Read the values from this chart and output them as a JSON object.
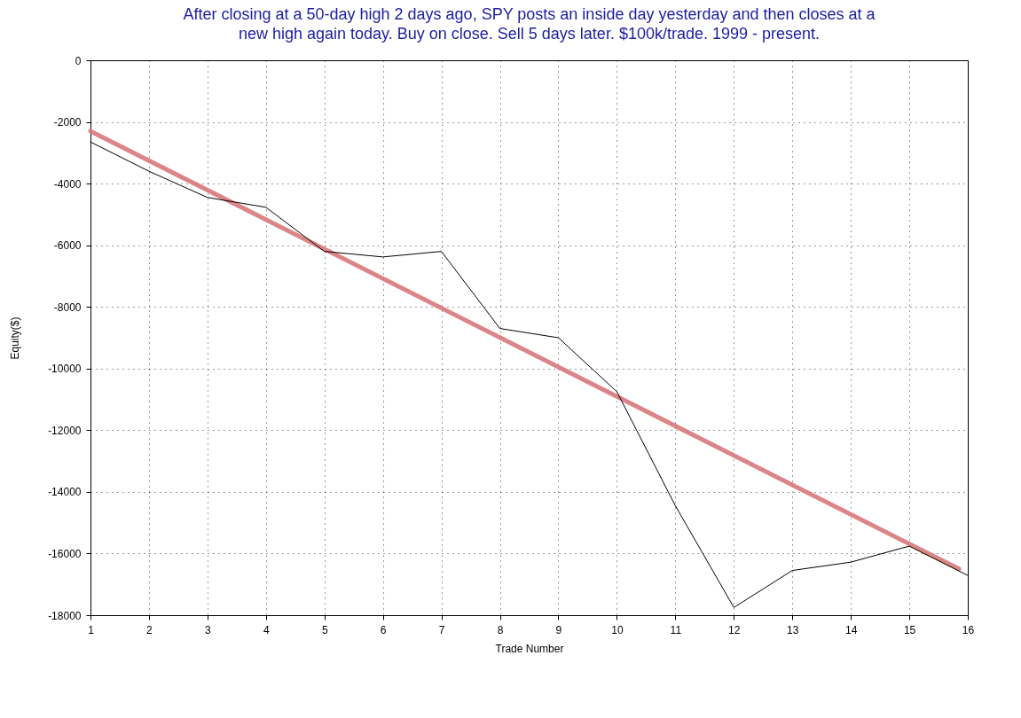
{
  "chart_data": {
    "type": "line",
    "title": [
      "After closing at a 50-day high 2 days ago, SPY posts an inside day yesterday and then closes at a",
      "new high again today. Buy on close. Sell 5 days later. $100k/trade. 1999 - present."
    ],
    "xlabel": "Trade Number",
    "ylabel": "Equity($)",
    "x": [
      1,
      2,
      3,
      4,
      5,
      6,
      7,
      8,
      9,
      10,
      11,
      12,
      13,
      14,
      15,
      16
    ],
    "series": [
      {
        "color": "#000000",
        "values": [
          -2650,
          -3600,
          -4450,
          -4770,
          -6200,
          -6380,
          -6200,
          -8700,
          -9000,
          -10750,
          -14450,
          -17750,
          -16550,
          -16280,
          -15760,
          -16710
        ]
      },
      {
        "type": "line",
        "color": "#d9777a",
        "x": [
          1,
          15.85
        ],
        "values": [
          -2300,
          -16500
        ]
      }
    ],
    "xlim": [
      1,
      16
    ],
    "xticks": [
      1,
      2,
      3,
      4,
      5,
      6,
      7,
      8,
      9,
      10,
      11,
      12,
      13,
      14,
      15,
      16
    ],
    "ylim": [
      -18000,
      0
    ],
    "yticks": [
      0,
      -2000,
      -4000,
      -6000,
      -8000,
      -10000,
      -12000,
      -14000,
      -16000,
      -18000
    ],
    "grid": true,
    "line_style": "solid"
  }
}
